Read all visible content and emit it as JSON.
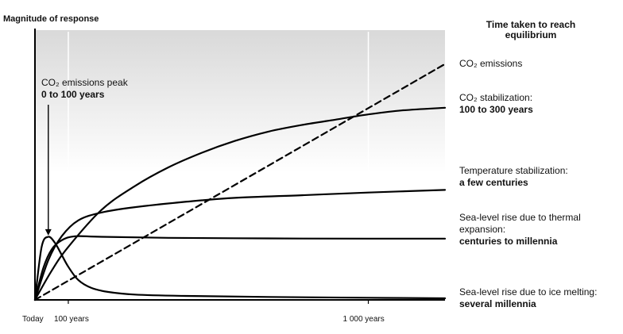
{
  "chart_data": {
    "type": "line",
    "ylabel": "Magnitude of response",
    "legend_title": "Time taken to reach equilibrium",
    "x_ticks": [
      {
        "label": "Today",
        "x": 0
      },
      {
        "label": "100 years",
        "x": 100
      },
      {
        "label": "1 000 years",
        "x": 1000
      }
    ],
    "xlim": [
      0,
      1230
    ],
    "ylim": [
      0,
      1
    ],
    "annotation": {
      "line1": "CO₂ emissions peak",
      "line2": "0 to 100 years",
      "arrow_x": 40,
      "arrow_y": 0.24
    },
    "series": [
      {
        "name": "CO₂ emissions",
        "style": "solid",
        "points": [
          [
            0,
            0.0
          ],
          [
            20,
            0.2
          ],
          [
            40,
            0.238
          ],
          [
            60,
            0.215
          ],
          [
            80,
            0.17
          ],
          [
            100,
            0.125
          ],
          [
            130,
            0.075
          ],
          [
            170,
            0.045
          ],
          [
            220,
            0.03
          ],
          [
            300,
            0.02
          ],
          [
            450,
            0.015
          ],
          [
            700,
            0.011
          ],
          [
            1000,
            0.008
          ],
          [
            1230,
            0.006
          ]
        ],
        "note_lines": [
          {
            "text": "CO₂ emissions",
            "bold": false
          }
        ]
      },
      {
        "name": "CO₂ stabilization",
        "style": "solid",
        "points": [
          [
            0,
            0.0
          ],
          [
            25,
            0.12
          ],
          [
            50,
            0.19
          ],
          [
            80,
            0.225
          ],
          [
            120,
            0.24
          ],
          [
            200,
            0.238
          ],
          [
            400,
            0.234
          ],
          [
            700,
            0.232
          ],
          [
            1000,
            0.231
          ],
          [
            1230,
            0.231
          ]
        ],
        "note_lines": [
          {
            "text": "CO₂ stabilization:",
            "bold": false
          },
          {
            "text": "100 to 300 years",
            "bold": true
          }
        ]
      },
      {
        "name": "Temperature stabilization",
        "style": "solid",
        "points": [
          [
            0,
            0.0
          ],
          [
            40,
            0.15
          ],
          [
            80,
            0.24
          ],
          [
            130,
            0.3
          ],
          [
            200,
            0.33
          ],
          [
            300,
            0.35
          ],
          [
            450,
            0.37
          ],
          [
            600,
            0.385
          ],
          [
            800,
            0.395
          ],
          [
            1000,
            0.405
          ],
          [
            1230,
            0.415
          ]
        ],
        "note_lines": [
          {
            "text": "Temperature stabilization:",
            "bold": false
          },
          {
            "text": "a few centuries",
            "bold": true
          }
        ]
      },
      {
        "name": "Sea-level rise due to thermal expansion",
        "style": "solid",
        "points": [
          [
            0,
            0.0
          ],
          [
            50,
            0.11
          ],
          [
            100,
            0.2
          ],
          [
            200,
            0.34
          ],
          [
            300,
            0.43
          ],
          [
            400,
            0.5
          ],
          [
            500,
            0.555
          ],
          [
            600,
            0.6
          ],
          [
            700,
            0.635
          ],
          [
            800,
            0.66
          ],
          [
            900,
            0.68
          ],
          [
            1000,
            0.7
          ],
          [
            1100,
            0.715
          ],
          [
            1230,
            0.725
          ]
        ],
        "note_lines": [
          {
            "text": "Sea-level rise due to thermal",
            "bold": false
          },
          {
            "text": "expansion:",
            "bold": false
          },
          {
            "text": "centuries to millennia",
            "bold": true
          }
        ]
      },
      {
        "name": "Sea-level rise due to ice melting",
        "style": "dashed",
        "points": [
          [
            0,
            0.0
          ],
          [
            1230,
            0.89
          ]
        ],
        "note_lines": [
          {
            "text": "Sea-level rise due to ice melting:",
            "bold": false
          },
          {
            "text": "several millennia",
            "bold": true
          }
        ]
      }
    ]
  }
}
